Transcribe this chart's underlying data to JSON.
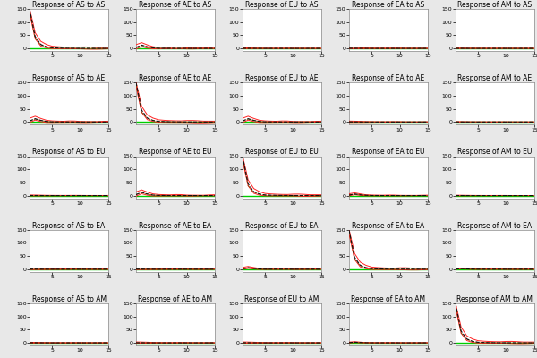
{
  "regions": [
    "AS",
    "AE",
    "EU",
    "EA",
    "AM"
  ],
  "n_periods": 15,
  "background_color": "#e8e8e8",
  "panel_bg": "#ffffff",
  "title_fontsize": 5.5,
  "tick_fontsize": 4.5,
  "ylim": [
    -10,
    150
  ],
  "yticks": [
    0,
    50,
    100,
    150
  ],
  "xticks": [
    5,
    10,
    15
  ],
  "xlim": [
    1,
    15
  ],
  "colors": {
    "zero": "#00cc00",
    "irf": "#111111",
    "ci_upper": "#ff2222",
    "ci_lower": "#ff2222",
    "irf2": "#884400"
  }
}
